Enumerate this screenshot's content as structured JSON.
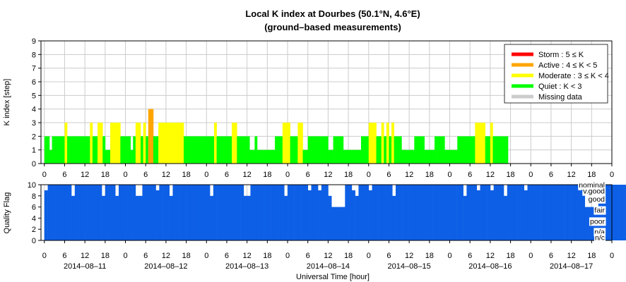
{
  "chart_data": [
    {
      "type": "bar",
      "title": "Local K index at Dourbes (50.1°N, 4.6°E)",
      "subtitle": "(ground–based measurements)",
      "ylabel": "K index [step]",
      "ylim": [
        0,
        9
      ],
      "yticks": [
        0,
        1,
        2,
        3,
        4,
        5,
        6,
        7,
        8,
        9
      ],
      "grid": true,
      "legend_position": "top-right",
      "xlim_hours": [
        -1,
        168
      ],
      "xtick_hours": [
        0,
        6,
        12,
        18,
        24,
        30,
        36,
        42,
        48,
        54,
        60,
        66,
        72,
        78,
        84,
        90,
        96,
        102,
        108,
        114,
        120,
        126,
        132,
        138,
        144,
        150,
        156,
        162,
        168
      ],
      "xtick_labels": [
        "0",
        "6",
        "12",
        "18",
        "0",
        "6",
        "12",
        "18",
        "0",
        "6",
        "12",
        "18",
        "0",
        "6",
        "12",
        "18",
        "0",
        "6",
        "12",
        "18",
        "0",
        "6",
        "12",
        "18",
        "0",
        "6",
        "12",
        "18",
        "0"
      ],
      "legend": [
        {
          "label": "Storm : 5 ≤ K",
          "color": "#ff0000"
        },
        {
          "label": "Active : 4 ≤ K < 5",
          "color": "#ffa500"
        },
        {
          "label": "Moderate : 3 ≤ K < 4",
          "color": "#ffff00"
        },
        {
          "label": "Quiet : K < 3",
          "color": "#00ff00"
        },
        {
          "label": "Missing data",
          "color": "#cccccc"
        }
      ],
      "bar_width_hours": 0.75,
      "start_hour": 0,
      "values": [
        2,
        2,
        1,
        2,
        2,
        2,
        2,
        2,
        3,
        2,
        2,
        2,
        2,
        2,
        2,
        2,
        2,
        2,
        3,
        2,
        2,
        3,
        3,
        2,
        1,
        1,
        3,
        3,
        3,
        3,
        2,
        2,
        2,
        2,
        1,
        2,
        3,
        3,
        2,
        3,
        2,
        4,
        4,
        2,
        2,
        3,
        3,
        3,
        3,
        3,
        3,
        3,
        3,
        3,
        3,
        2,
        2,
        2,
        2,
        2,
        2,
        2,
        2,
        2,
        2,
        2,
        2,
        3,
        2,
        2,
        2,
        2,
        2,
        2,
        3,
        3,
        2,
        2,
        2,
        2,
        2,
        1,
        1,
        2,
        1,
        1,
        1,
        1,
        1,
        1,
        1,
        2,
        2,
        2,
        3,
        3,
        3,
        2,
        2,
        2,
        3,
        3,
        1,
        1,
        2,
        2,
        2,
        2,
        2,
        2,
        2,
        2,
        1,
        1,
        2,
        2,
        2,
        2,
        1,
        1,
        1,
        1,
        1,
        1,
        1,
        2,
        2,
        2,
        3,
        3,
        3,
        2,
        2,
        3,
        2,
        3,
        2,
        3,
        2,
        2,
        2,
        1,
        1,
        1,
        1,
        1,
        2,
        2,
        2,
        2,
        1,
        1,
        1,
        1,
        2,
        2,
        2,
        2,
        1,
        1,
        1,
        1,
        1,
        2,
        2,
        2,
        2,
        2,
        2,
        2,
        3,
        3,
        3,
        3,
        2,
        2,
        3,
        2,
        2,
        2,
        2,
        2,
        2
      ]
    },
    {
      "type": "bar",
      "ylabel": "Quality Flag",
      "xlabel": "Universal Time [hour]",
      "ylim": [
        0,
        10
      ],
      "yticks": [
        0,
        2,
        4,
        6,
        8,
        10
      ],
      "bar_color": "#0d5fe6",
      "xtick_labels": [
        "0",
        "6",
        "12",
        "18",
        "0",
        "6",
        "12",
        "18",
        "0",
        "6",
        "12",
        "18",
        "0",
        "6",
        "12",
        "18",
        "0",
        "6",
        "12",
        "18",
        "0",
        "6",
        "12",
        "18",
        "0",
        "6",
        "12",
        "18",
        "0"
      ],
      "dates": [
        "2014–08–11",
        "2014–08–12",
        "2014–08–13",
        "2014–08–14",
        "2014–08–15",
        "2014–08–16",
        "2014–08–17"
      ],
      "flag_levels": [
        {
          "label": "nominal",
          "value": 10
        },
        {
          "label": "v.good",
          "value": 8.9
        },
        {
          "label": "good",
          "value": 7.5
        },
        {
          "label": "fair",
          "value": 5.5
        },
        {
          "label": "poor",
          "value": 3.5
        },
        {
          "label": "n/a",
          "value": 1.6
        },
        {
          "label": "n/c",
          "value": 0.6
        }
      ],
      "hourly_values": [
        9,
        10,
        10,
        10,
        10,
        10,
        10,
        10,
        8,
        10,
        10,
        10,
        10,
        10,
        10,
        10,
        10,
        8,
        10,
        10,
        10,
        8,
        10,
        10,
        10,
        10,
        10,
        8,
        8,
        10,
        10,
        10,
        10,
        9,
        10,
        10,
        10,
        8,
        10,
        10,
        10,
        10,
        10,
        10,
        10,
        10,
        10,
        10,
        10,
        8,
        10,
        10,
        10,
        10,
        10,
        10,
        10,
        10,
        10,
        8,
        8,
        10,
        10,
        10,
        10,
        10,
        10,
        10,
        10,
        10,
        10,
        8,
        10,
        10,
        10,
        10,
        10,
        10,
        9,
        10,
        10,
        9,
        10,
        10,
        8,
        6,
        6,
        6,
        6,
        10,
        10,
        9,
        8,
        10,
        10,
        10,
        9,
        10,
        10,
        10,
        10,
        10,
        10,
        8,
        10,
        10,
        10,
        10,
        10,
        10,
        10,
        10,
        10,
        10,
        10,
        10,
        10,
        10,
        10,
        10,
        10,
        10,
        10,
        10,
        8,
        10,
        10,
        10,
        9,
        10,
        10,
        10,
        9,
        10,
        10,
        10,
        8,
        10,
        10,
        10,
        10,
        10,
        9,
        10,
        10,
        10,
        10,
        10,
        10,
        10,
        10,
        10,
        10,
        10,
        10,
        10,
        10,
        10,
        9,
        10,
        6,
        6,
        6,
        6,
        8,
        10,
        10,
        10,
        10,
        10,
        10,
        10,
        10
      ]
    }
  ]
}
